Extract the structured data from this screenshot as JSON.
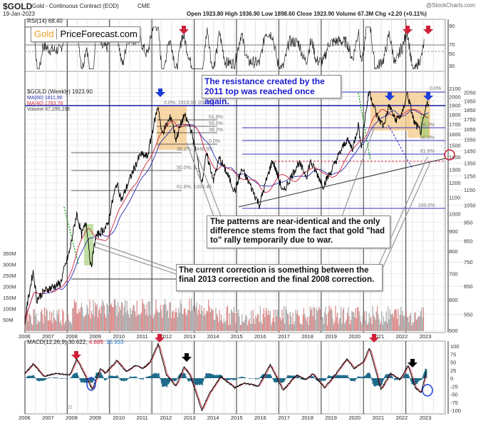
{
  "header": {
    "symbol": "$GOLD",
    "name": "Gold - Continuous Contract (EOD)",
    "exchange": "CME",
    "date": "19-Jan-2023",
    "watermark": "@StockCharts.com",
    "ohlc": "Open 1923.80  High 1936.90  Low 1898.60  Close 1923.90  Volume 67.3M  Chg +2.20 (+0.11%)"
  },
  "logo": {
    "part1": "Gold",
    "part2": "PriceForecast.com"
  },
  "rsi": {
    "label": "RSI(14) 68.40",
    "ticks": [
      "90",
      "70",
      "50",
      "30"
    ]
  },
  "price_legend": {
    "main": "$GOLD (Weekly) 1923.90",
    "ma60": "MA(60) 1811.90",
    "ma40": "MA(40) 1783.78",
    "volume": "Volume 67,295,296"
  },
  "annotations": {
    "resistance": "The resistance created by the 2011 top was reached once again.",
    "patterns": "The patterns are near-identical and the only difference stems from the fact that gold \"had to\" rally temporarily due to war.",
    "correction": "The current correction is something between the final 2013 correction and the final 2008 correction."
  },
  "fib_left": [
    "0.0%: 1919.00 100.0%",
    "61.8%",
    "50.0%",
    "38.2%",
    "0.0%",
    "38.2%: 1446.95",
    "50.0%: 1...",
    "61.8%: 1354.45"
  ],
  "fib_right": [
    "0.0%",
    "38.2%",
    "50.0%",
    "61.8%",
    "100.0%"
  ],
  "macd": {
    "label": "MACD(12,26,9)",
    "v1": "30.622,",
    "v2": "4.689,",
    "v3": "25.933",
    "ticks": [
      "100",
      "75",
      "50",
      "25",
      "0",
      "-25",
      "-50",
      "-75",
      "-100"
    ],
    "footnote": "92"
  },
  "colors": {
    "price": "#000000",
    "ma60": "#2b2bb0",
    "ma40": "#d0203a",
    "resistance": "#1a1aa8",
    "box": "#f5c98a",
    "arrow_red": "#d0203a",
    "arrow_blue": "#1c3fd8",
    "hist": "#1f6b8a"
  },
  "chart_data": {
    "type": "line",
    "title": "$GOLD Gold - Continuous Contract (EOD) Weekly",
    "x_years": [
      "2006",
      "2007",
      "2008",
      "2009",
      "2010",
      "2011",
      "2012",
      "2013",
      "2014",
      "2015",
      "2016",
      "2017",
      "2018",
      "2019",
      "2020",
      "2021",
      "2022",
      "2023"
    ],
    "price_ticks": [
      "2100",
      "2050",
      "2000",
      "1950",
      "1900",
      "1850",
      "1800",
      "1750",
      "1700",
      "1650",
      "1600",
      "1550",
      "1500",
      "1450",
      "1400",
      "1350",
      "1300",
      "1250",
      "1200",
      "1150",
      "1100",
      "1050",
      "1000",
      "950",
      "900",
      "850",
      "800",
      "750",
      "700",
      "650",
      "600",
      "550",
      "500"
    ],
    "volume_ticks": [
      "350M",
      "300M",
      "250M",
      "200M",
      "150M",
      "100M",
      "50M"
    ],
    "ylim": [
      500,
      2100
    ],
    "price_series": [
      [
        2006.0,
        530
      ],
      [
        2006.35,
        710
      ],
      [
        2006.5,
        600
      ],
      [
        2006.8,
        630
      ],
      [
        2007.0,
        640
      ],
      [
        2007.5,
        660
      ],
      [
        2007.9,
        800
      ],
      [
        2008.2,
        1000
      ],
      [
        2008.4,
        880
      ],
      [
        2008.6,
        950
      ],
      [
        2008.8,
        720
      ],
      [
        2009.0,
        870
      ],
      [
        2009.5,
        930
      ],
      [
        2009.9,
        1200
      ],
      [
        2010.1,
        1080
      ],
      [
        2010.5,
        1250
      ],
      [
        2010.9,
        1420
      ],
      [
        2011.2,
        1400
      ],
      [
        2011.65,
        1900
      ],
      [
        2011.8,
        1600
      ],
      [
        2012.2,
        1780
      ],
      [
        2012.4,
        1550
      ],
      [
        2012.75,
        1790
      ],
      [
        2013.0,
        1680
      ],
      [
        2013.5,
        1200
      ],
      [
        2013.7,
        1420
      ],
      [
        2014.0,
        1220
      ],
      [
        2014.25,
        1390
      ],
      [
        2014.9,
        1140
      ],
      [
        2015.2,
        1300
      ],
      [
        2015.95,
        1050
      ],
      [
        2016.5,
        1370
      ],
      [
        2016.95,
        1130
      ],
      [
        2017.6,
        1350
      ],
      [
        2017.95,
        1250
      ],
      [
        2018.1,
        1360
      ],
      [
        2018.65,
        1180
      ],
      [
        2019.0,
        1290
      ],
      [
        2019.65,
        1550
      ],
      [
        2019.9,
        1470
      ],
      [
        2020.15,
        1700
      ],
      [
        2020.25,
        1470
      ],
      [
        2020.6,
        2070
      ],
      [
        2020.9,
        1800
      ],
      [
        2021.2,
        1680
      ],
      [
        2021.45,
        1900
      ],
      [
        2021.7,
        1740
      ],
      [
        2022.0,
        1800
      ],
      [
        2022.2,
        2050
      ],
      [
        2022.5,
        1720
      ],
      [
        2022.8,
        1620
      ],
      [
        2023.05,
        1924
      ]
    ],
    "macd_series": [
      [
        2006.0,
        15
      ],
      [
        2006.35,
        45
      ],
      [
        2006.8,
        5
      ],
      [
        2007.3,
        15
      ],
      [
        2007.9,
        10
      ],
      [
        2008.2,
        60
      ],
      [
        2008.85,
        -35
      ],
      [
        2009.2,
        30
      ],
      [
        2009.4,
        15
      ],
      [
        2009.9,
        55
      ],
      [
        2010.3,
        20
      ],
      [
        2010.7,
        40
      ],
      [
        2011.0,
        30
      ],
      [
        2011.3,
        50
      ],
      [
        2011.65,
        108
      ],
      [
        2012.0,
        10
      ],
      [
        2012.4,
        -25
      ],
      [
        2012.75,
        35
      ],
      [
        2013.0,
        10
      ],
      [
        2013.5,
        -100
      ],
      [
        2013.8,
        -50
      ],
      [
        2014.3,
        5
      ],
      [
        2014.9,
        -30
      ],
      [
        2015.3,
        -15
      ],
      [
        2015.9,
        -25
      ],
      [
        2016.4,
        42
      ],
      [
        2016.95,
        -38
      ],
      [
        2017.5,
        10
      ],
      [
        2017.9,
        -5
      ],
      [
        2018.2,
        15
      ],
      [
        2018.7,
        -30
      ],
      [
        2019.2,
        15
      ],
      [
        2019.65,
        60
      ],
      [
        2019.95,
        30
      ],
      [
        2020.35,
        50
      ],
      [
        2020.6,
        95
      ],
      [
        2021.1,
        -35
      ],
      [
        2021.5,
        15
      ],
      [
        2021.9,
        -5
      ],
      [
        2022.25,
        40
      ],
      [
        2022.55,
        -30
      ],
      [
        2022.8,
        -45
      ],
      [
        2023.05,
        31
      ]
    ],
    "macd_ylim": [
      -100,
      100
    ]
  }
}
